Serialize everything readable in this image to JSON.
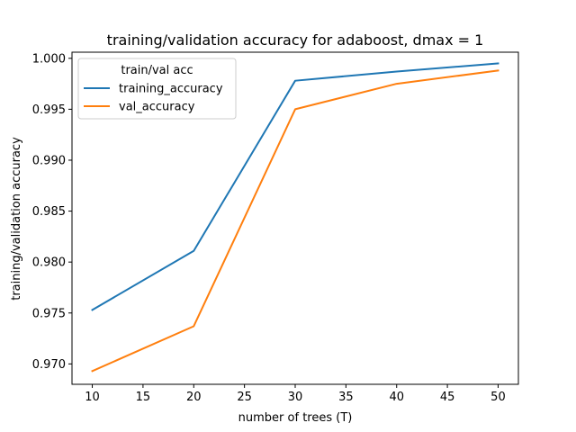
{
  "chart_data": {
    "type": "line",
    "title": "training/validation accuracy for adaboost, dmax = 1",
    "xlabel": "number of trees (T)",
    "ylabel": "training/validation accuracy",
    "x": [
      10,
      20,
      30,
      40,
      50
    ],
    "xlim": [
      8,
      52
    ],
    "ylim": [
      0.968,
      1.0006
    ],
    "xticks": [
      10,
      15,
      20,
      25,
      30,
      35,
      40,
      45,
      50
    ],
    "xtick_labels": [
      "10",
      "15",
      "20",
      "25",
      "30",
      "35",
      "40",
      "45",
      "50"
    ],
    "yticks": [
      0.97,
      0.975,
      0.98,
      0.985,
      0.99,
      0.995,
      1.0
    ],
    "ytick_labels": [
      "0.970",
      "0.975",
      "0.980",
      "0.985",
      "0.990",
      "0.995",
      "1.000"
    ],
    "grid": false,
    "legend": {
      "title": "train/val acc",
      "placement": "upper-left"
    },
    "series": [
      {
        "name": "training_accuracy",
        "color": "#1f77b4",
        "values": [
          0.9753,
          0.9811,
          0.9978,
          0.9987,
          0.9995
        ]
      },
      {
        "name": "val_accuracy",
        "color": "#ff7f0e",
        "values": [
          0.9693,
          0.9737,
          0.995,
          0.9975,
          0.9988
        ]
      }
    ]
  }
}
